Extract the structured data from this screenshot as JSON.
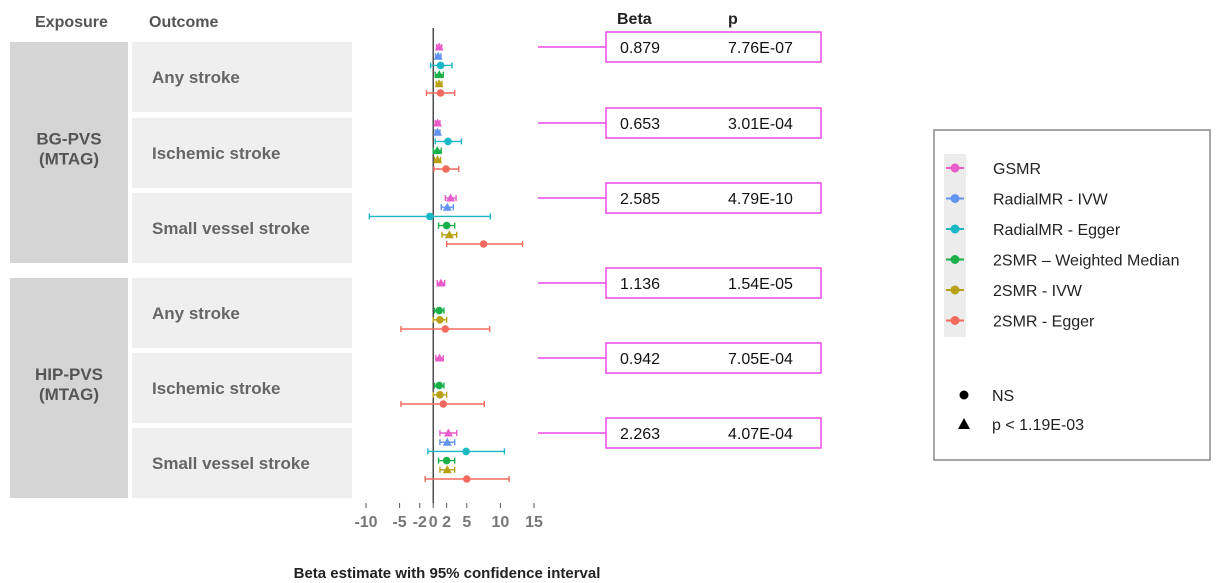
{
  "chart_data": {
    "type": "forest",
    "headers": {
      "exposure": "Exposure",
      "outcome": "Outcome",
      "beta": "Beta",
      "p": "p"
    },
    "xlabel": "Beta estimate with 95% confidence interval",
    "xlim": [
      -10,
      15
    ],
    "xticks": [
      -10,
      -5,
      -2,
      0,
      2,
      5,
      10,
      15
    ],
    "exposures": [
      {
        "label": "BG-PVS\n(MTAG)",
        "outcomes": [
          0,
          1,
          2
        ]
      },
      {
        "label": "HIP-PVS\n(MTAG)",
        "outcomes": [
          3,
          4,
          5
        ]
      }
    ],
    "outcomes": [
      {
        "label": "Any stroke",
        "beta": "0.879",
        "p": "7.76E-07",
        "estimates": [
          {
            "method": "GSMR",
            "est": 0.88,
            "lo": 0.5,
            "hi": 1.26,
            "shape": "triangle"
          },
          {
            "method": "RadialMR - IVW",
            "est": 0.75,
            "lo": 0.35,
            "hi": 1.15,
            "shape": "triangle"
          },
          {
            "method": "RadialMR - Egger",
            "est": 1.1,
            "lo": -0.4,
            "hi": 2.8,
            "shape": "circle"
          },
          {
            "method": "2SMR – Weighted Median",
            "est": 0.9,
            "lo": 0.3,
            "hi": 1.5,
            "shape": "triangle"
          },
          {
            "method": "2SMR - IVW",
            "est": 0.88,
            "lo": 0.45,
            "hi": 1.3,
            "shape": "triangle"
          },
          {
            "method": "2SMR - Egger",
            "est": 1.1,
            "lo": -1.0,
            "hi": 3.2,
            "shape": "circle"
          }
        ]
      },
      {
        "label": "Ischemic stroke",
        "beta": "0.653",
        "p": "3.01E-04",
        "estimates": [
          {
            "method": "GSMR",
            "est": 0.65,
            "lo": 0.3,
            "hi": 1.0,
            "shape": "triangle"
          },
          {
            "method": "RadialMR - IVW",
            "est": 0.65,
            "lo": 0.3,
            "hi": 1.0,
            "shape": "triangle"
          },
          {
            "method": "RadialMR - Egger",
            "est": 2.2,
            "lo": 0.3,
            "hi": 4.2,
            "shape": "circle"
          },
          {
            "method": "2SMR – Weighted Median",
            "est": 0.6,
            "lo": 0.0,
            "hi": 1.2,
            "shape": "triangle"
          },
          {
            "method": "2SMR - IVW",
            "est": 0.65,
            "lo": 0.2,
            "hi": 1.1,
            "shape": "triangle"
          },
          {
            "method": "2SMR - Egger",
            "est": 1.9,
            "lo": 0.1,
            "hi": 3.8,
            "shape": "circle"
          }
        ]
      },
      {
        "label": "Small vessel stroke",
        "beta": "2.585",
        "p": "4.79E-10",
        "estimates": [
          {
            "method": "GSMR",
            "est": 2.59,
            "lo": 1.8,
            "hi": 3.4,
            "shape": "triangle"
          },
          {
            "method": "RadialMR - IVW",
            "est": 2.1,
            "lo": 1.2,
            "hi": 3.0,
            "shape": "triangle"
          },
          {
            "method": "RadialMR - Egger",
            "est": -0.5,
            "lo": -9.5,
            "hi": 8.5,
            "shape": "circle"
          },
          {
            "method": "2SMR – Weighted Median",
            "est": 2.0,
            "lo": 0.8,
            "hi": 3.2,
            "shape": "circle"
          },
          {
            "method": "2SMR - IVW",
            "est": 2.4,
            "lo": 1.3,
            "hi": 3.5,
            "shape": "triangle"
          },
          {
            "method": "2SMR - Egger",
            "est": 7.5,
            "lo": 2.0,
            "hi": 13.3,
            "shape": "circle"
          }
        ]
      },
      {
        "label": "Any stroke",
        "beta": "1.136",
        "p": "1.54E-05",
        "estimates": [
          {
            "method": "GSMR",
            "est": 1.14,
            "lo": 0.6,
            "hi": 1.7,
            "shape": "triangle"
          },
          {
            "method": "2SMR – Weighted Median",
            "est": 0.9,
            "lo": 0.2,
            "hi": 1.6,
            "shape": "circle"
          },
          {
            "method": "2SMR - IVW",
            "est": 1.0,
            "lo": 0.0,
            "hi": 2.0,
            "shape": "circle"
          },
          {
            "method": "2SMR - Egger",
            "est": 1.8,
            "lo": -4.8,
            "hi": 8.4,
            "shape": "circle"
          }
        ]
      },
      {
        "label": "Ischemic stroke",
        "beta": "0.942",
        "p": "7.05E-04",
        "estimates": [
          {
            "method": "GSMR",
            "est": 0.94,
            "lo": 0.4,
            "hi": 1.5,
            "shape": "triangle"
          },
          {
            "method": "2SMR – Weighted Median",
            "est": 0.9,
            "lo": 0.2,
            "hi": 1.6,
            "shape": "circle"
          },
          {
            "method": "2SMR - IVW",
            "est": 1.0,
            "lo": 0.0,
            "hi": 2.0,
            "shape": "circle"
          },
          {
            "method": "2SMR - Egger",
            "est": 1.5,
            "lo": -4.8,
            "hi": 7.6,
            "shape": "circle"
          }
        ]
      },
      {
        "label": "Small vessel stroke",
        "beta": "2.263",
        "p": "4.07E-04",
        "estimates": [
          {
            "method": "GSMR",
            "est": 2.26,
            "lo": 1.0,
            "hi": 3.5,
            "shape": "triangle"
          },
          {
            "method": "RadialMR - IVW",
            "est": 2.1,
            "lo": 1.0,
            "hi": 3.2,
            "shape": "triangle"
          },
          {
            "method": "RadialMR - Egger",
            "est": 4.9,
            "lo": -0.8,
            "hi": 10.6,
            "shape": "circle"
          },
          {
            "method": "2SMR – Weighted Median",
            "est": 2.0,
            "lo": 0.8,
            "hi": 3.2,
            "shape": "circle"
          },
          {
            "method": "2SMR - IVW",
            "est": 2.1,
            "lo": 1.0,
            "hi": 3.2,
            "shape": "triangle"
          },
          {
            "method": "2SMR - Egger",
            "est": 5.0,
            "lo": -1.2,
            "hi": 11.3,
            "shape": "circle"
          }
        ]
      }
    ],
    "methods": [
      {
        "name": "GSMR",
        "color": "#e85ccc"
      },
      {
        "name": "RadialMR - IVW",
        "color": "#6194f0"
      },
      {
        "name": "RadialMR - Egger",
        "color": "#19b8c4"
      },
      {
        "name": "2SMR – Weighted Median",
        "color": "#19b04a"
      },
      {
        "name": "2SMR - IVW",
        "color": "#b8a214"
      },
      {
        "name": "2SMR - Egger",
        "color": "#f26b5e"
      }
    ],
    "shape_legend": [
      {
        "shape": "circle",
        "label": "NS"
      },
      {
        "shape": "triangle",
        "label": "p < 1.19E-03"
      }
    ],
    "colors": {
      "callout": "#e94ae6",
      "row_bg": "#efefef",
      "exposure_bg": "#d5d5d5",
      "header_text": "#555555",
      "row_text": "#666666"
    }
  }
}
